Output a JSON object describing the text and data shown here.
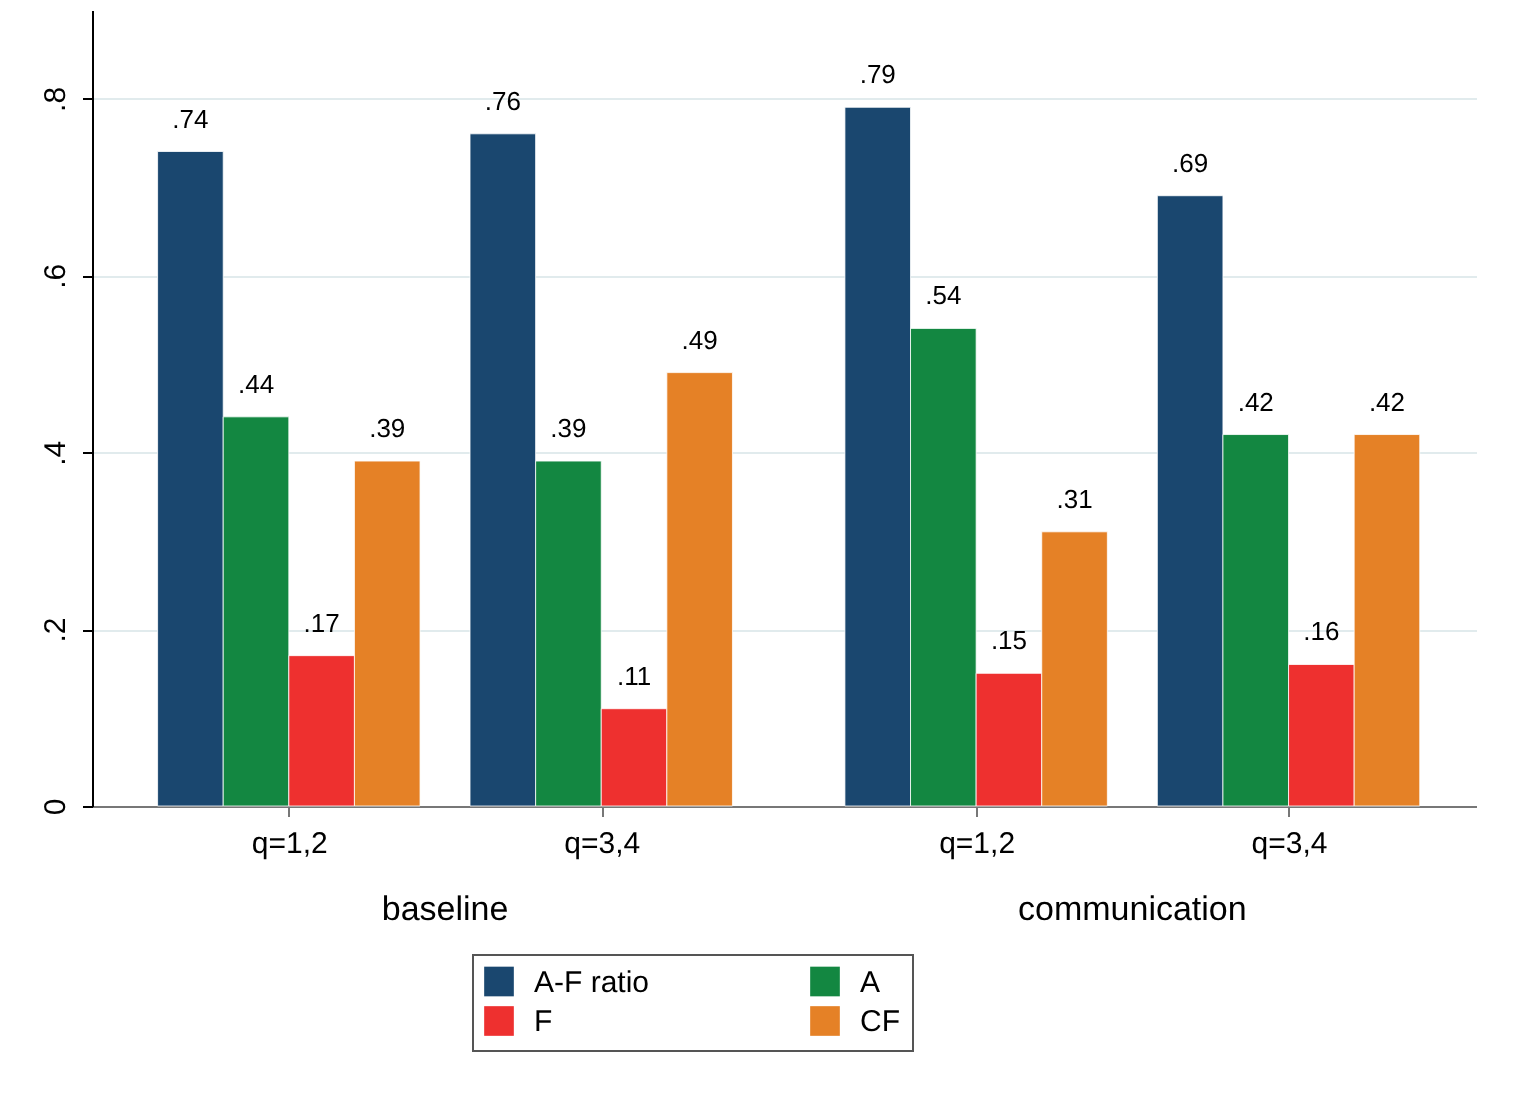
{
  "chart_data": {
    "type": "bar",
    "categories": [
      "q=1,2",
      "q=3,4",
      "q=1,2",
      "q=3,4"
    ],
    "annotations": [
      "baseline",
      "communication"
    ],
    "series": [
      {
        "name": "A-F ratio",
        "color": "#1a476f",
        "values": [
          0.74,
          0.76,
          0.79,
          0.69
        ],
        "value_labels": [
          ".74",
          ".76",
          ".79",
          ".69"
        ]
      },
      {
        "name": "A",
        "color": "#138741",
        "values": [
          0.44,
          0.39,
          0.54,
          0.42
        ],
        "value_labels": [
          ".44",
          ".39",
          ".54",
          ".42"
        ]
      },
      {
        "name": "F",
        "color": "#ee302f",
        "values": [
          0.17,
          0.11,
          0.15,
          0.16
        ],
        "value_labels": [
          ".17",
          ".11",
          ".15",
          ".16"
        ]
      },
      {
        "name": "CF",
        "color": "#e58126",
        "values": [
          0.39,
          0.49,
          0.31,
          0.42
        ],
        "value_labels": [
          ".39",
          ".49",
          ".31",
          ".42"
        ]
      }
    ],
    "ylim": [
      0,
      0.9
    ],
    "yticks": [
      0,
      {
        "value": 0.2,
        "label": ".2"
      },
      {
        "value": 0.4,
        "label": ".4"
      },
      {
        "value": 0.6,
        "label": ".6"
      },
      {
        "value": 0.8,
        "label": ".8"
      }
    ],
    "grid": "y",
    "legend": "bottom"
  }
}
